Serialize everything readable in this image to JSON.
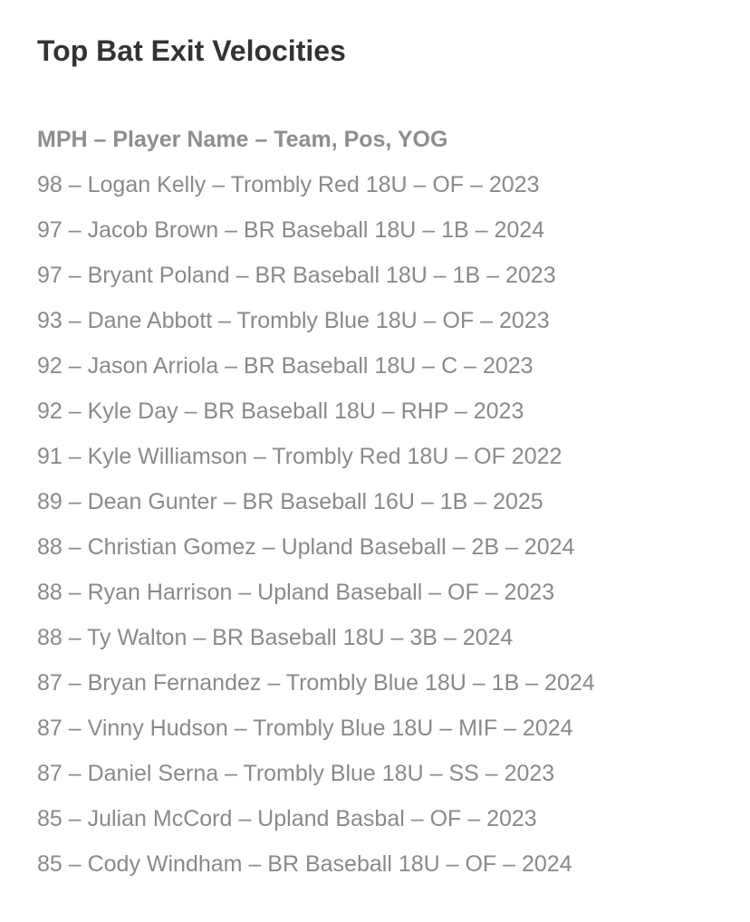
{
  "title": "Top Bat Exit Velocities",
  "header": "MPH – Player Name – Team, Pos, YOG",
  "rows": [
    "98 – Logan Kelly – Trombly Red 18U – OF – 2023",
    "97 – Jacob Brown – BR Baseball 18U – 1B – 2024",
    "97 – Bryant Poland – BR Baseball 18U – 1B – 2023",
    "93 – Dane Abbott – Trombly Blue 18U – OF – 2023",
    "92 – Jason Arriola – BR Baseball 18U – C – 2023",
    "92 – Kyle Day – BR Baseball 18U – RHP – 2023",
    "91 – Kyle Williamson – Trombly Red 18U – OF 2022",
    "89 – Dean Gunter – BR Baseball 16U – 1B – 2025",
    "88 – Christian Gomez – Upland Baseball – 2B – 2024",
    "88 – Ryan Harrison – Upland Baseball – OF – 2023",
    "88 – Ty Walton – BR Baseball 18U – 3B – 2024",
    "87 – Bryan Fernandez – Trombly Blue 18U – 1B – 2024",
    "87 – Vinny Hudson – Trombly Blue 18U – MIF – 2024",
    "87 – Daniel Serna – Trombly Blue 18U – SS – 2023",
    "85 – Julian McCord – Upland Basbal – OF – 2023",
    "85 – Cody Windham – BR Baseball 18U – OF – 2024"
  ]
}
